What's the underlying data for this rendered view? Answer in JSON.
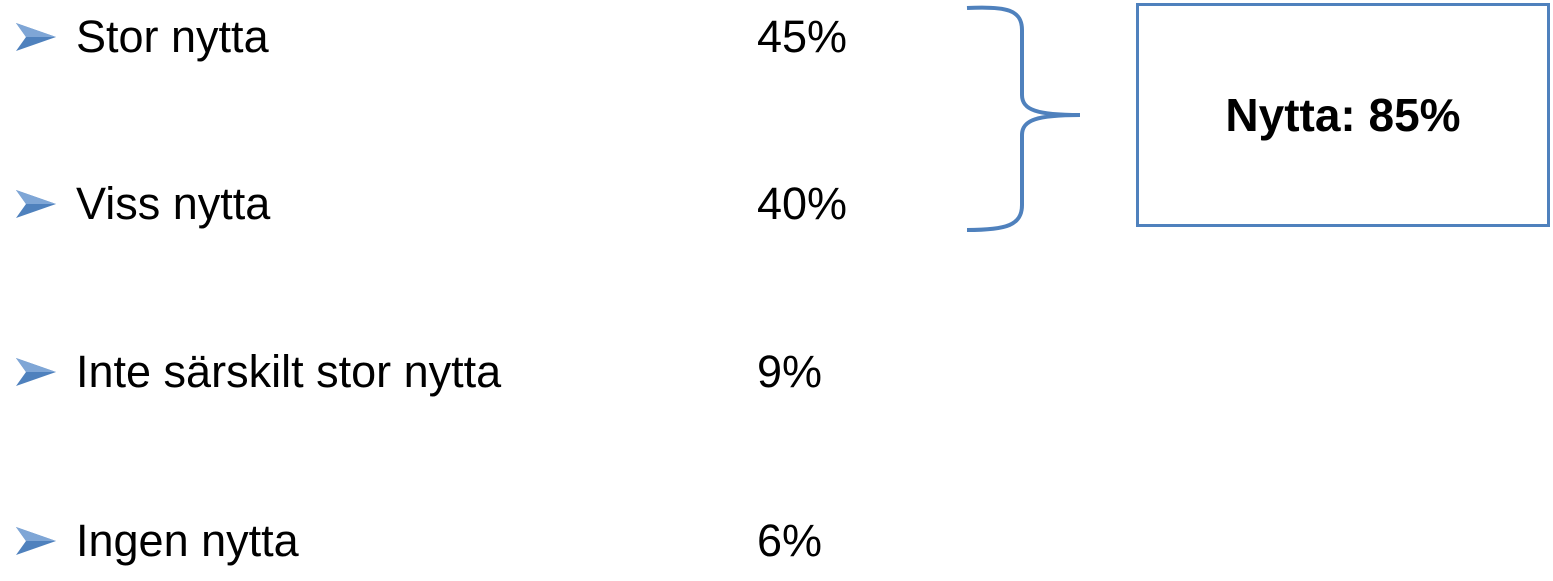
{
  "items": [
    {
      "label": "Stor nytta",
      "value": "45%"
    },
    {
      "label": "Viss nytta",
      "value": "40%"
    },
    {
      "label": "Inte särskilt stor nytta",
      "value": "9%"
    },
    {
      "label": "Ingen nytta",
      "value": "6%"
    }
  ],
  "summary": {
    "text": "Nytta: 85%"
  },
  "colors": {
    "accent": "#4F81BD",
    "bullet_fill": "#4F81BD",
    "bullet_shade": "#2C4F7C"
  },
  "icons": {
    "bullet": "arrowhead-bullet-icon",
    "brace": "curly-brace-icon"
  }
}
